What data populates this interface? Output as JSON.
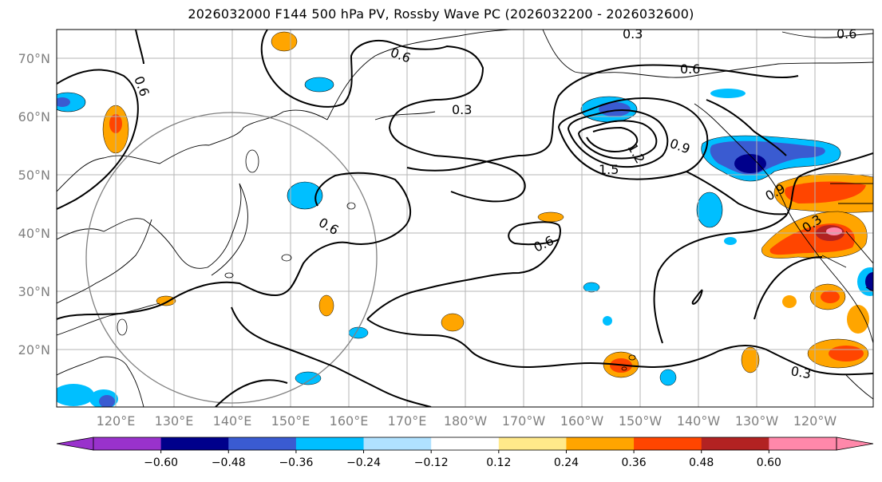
{
  "title": "2026032000 F144 500 hPa PV, Rossby Wave PC (2026032200 - 2026032600)",
  "lat_labels": [
    "70°N",
    "60°N",
    "50°N",
    "40°N",
    "30°N",
    "20°N"
  ],
  "lon_labels": [
    "120°E",
    "130°E",
    "140°E",
    "150°E",
    "160°E",
    "170°E",
    "180°W",
    "170°W",
    "160°W",
    "150°W",
    "140°W",
    "130°W",
    "120°W"
  ],
  "contour_labels": [
    "0.6",
    "0.6",
    "0.3",
    "0.6",
    "0.9",
    "1.2",
    "1.5",
    "0.9",
    "0.6",
    "0.6",
    "0.3",
    "0.3",
    "0.3",
    "0.6"
  ],
  "colorbar": {
    "ticks": [
      "−0.60",
      "−0.48",
      "−0.36",
      "−0.24",
      "−0.12",
      "0.12",
      "0.24",
      "0.36",
      "0.48",
      "0.60"
    ],
    "colors": [
      "#9932cc",
      "#00008b",
      "#3a5bd1",
      "#00bfff",
      "#b0e2ff",
      "#ffffff",
      "#ffe98a",
      "#ffa500",
      "#ff4500",
      "#b22222",
      "#ff88aa",
      "#ff88aa"
    ]
  }
}
